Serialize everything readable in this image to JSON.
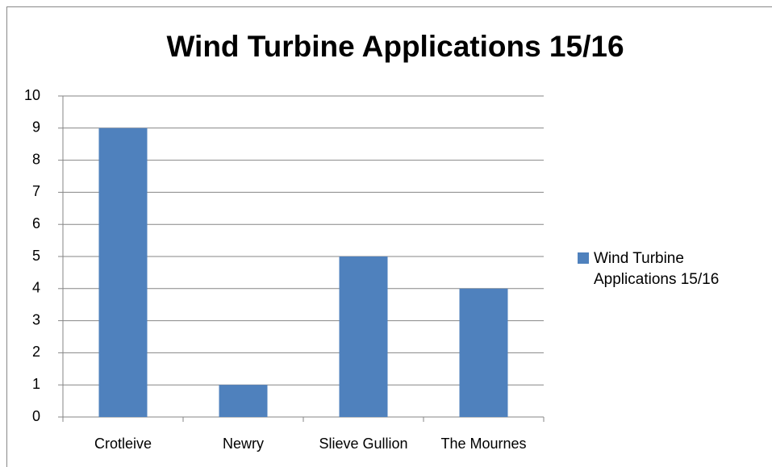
{
  "chart_data": {
    "type": "bar",
    "title": "Wind Turbine Applications 15/16",
    "categories": [
      "Crotleive",
      "Newry",
      "Slieve Gullion",
      "The Mournes"
    ],
    "series": [
      {
        "name": "Wind Turbine Applications 15/16",
        "color": "#4f81bd",
        "values": [
          9,
          1,
          5,
          4
        ]
      }
    ],
    "ylim": [
      0,
      10
    ],
    "yticks": [
      0,
      1,
      2,
      3,
      4,
      5,
      6,
      7,
      8,
      9,
      10
    ],
    "grid": true,
    "legend": "right"
  }
}
